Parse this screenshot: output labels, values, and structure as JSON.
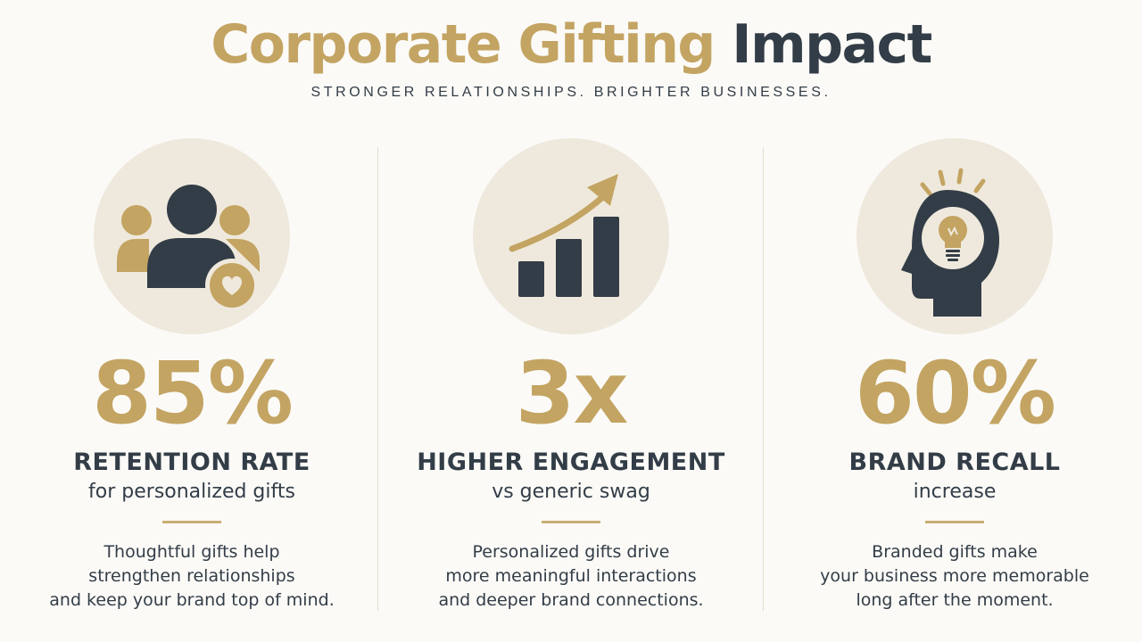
{
  "header": {
    "title_part1": "Corporate Gifting",
    "title_part2": "Impact",
    "subtitle": "STRONGER RELATIONSHIPS. BRIGHTER BUSINESSES."
  },
  "colors": {
    "gold": "#c3a462",
    "dark": "#333d47",
    "circle": "#efe9dd",
    "background": "#fbfaf7"
  },
  "stats": [
    {
      "icon": "people-heart-icon",
      "value": "85%",
      "label": "RETENTION RATE",
      "sublabel": "for personalized gifts",
      "description": [
        "Thoughtful gifts help",
        "strengthen relationships",
        "and keep your brand top of mind."
      ]
    },
    {
      "icon": "growth-chart-icon",
      "value": "3x",
      "label": "HIGHER ENGAGEMENT",
      "sublabel": "vs generic swag",
      "description": [
        "Personalized gifts drive",
        "more meaningful interactions",
        "and deeper brand connections."
      ]
    },
    {
      "icon": "head-lightbulb-icon",
      "value": "60%",
      "label": "BRAND RECALL",
      "sublabel": "increase",
      "description": [
        "Branded gifts make",
        "your business more memorable",
        "long after the moment."
      ]
    }
  ]
}
